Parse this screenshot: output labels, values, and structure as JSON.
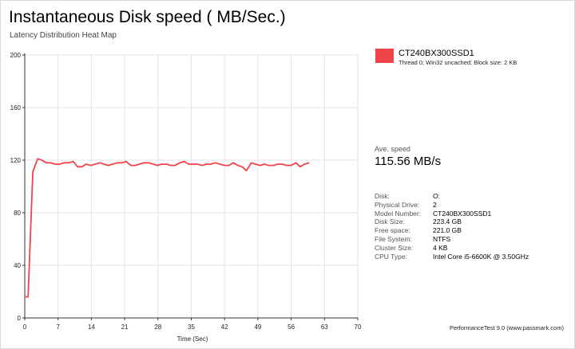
{
  "chart_data": {
    "type": "line",
    "title": "Instantaneous Disk speed ( MB/Sec.)",
    "subtitle": "Latency Distribution Heat Map",
    "xlabel": "Time (Sec)",
    "ylabel": "",
    "xlim": [
      0,
      70
    ],
    "ylim": [
      0,
      200
    ],
    "xticks": [
      0,
      7,
      14,
      21,
      28,
      35,
      42,
      49,
      56,
      63,
      70
    ],
    "yticks": [
      0,
      40,
      80,
      120,
      160,
      200
    ],
    "grid": true,
    "legend_position": "right",
    "series": [
      {
        "name": "CT240BX300SSD1",
        "detail": "Thread 0; Win32 uncached; Block size: 2 KB",
        "color": "#f0444a",
        "x": [
          0,
          0.7,
          1.7,
          2.7,
          3.6,
          4.5,
          5.4,
          6.4,
          7.3,
          8.3,
          9.2,
          10.2,
          11.1,
          12,
          12.9,
          13.9,
          14.8,
          15.8,
          16.6,
          17.6,
          18.5,
          19.4,
          20.4,
          21.3,
          22.3,
          23.2,
          24.1,
          25.1,
          26,
          27,
          27.9,
          28.8,
          29.8,
          30.7,
          31.6,
          32.6,
          33.5,
          34.5,
          35.4,
          36.3,
          37.3,
          38.2,
          39.1,
          40.1,
          41,
          42,
          42.9,
          43.8,
          44.8,
          45.7,
          46.6,
          47.6,
          48.5,
          49.5,
          50.4,
          51.3,
          52.3,
          53.2,
          54.1,
          55.1,
          56,
          57,
          57.9,
          58.8,
          59.8
        ],
        "y": [
          16,
          16,
          111,
          121,
          120,
          118,
          118,
          117,
          117,
          118,
          118,
          119,
          115,
          115,
          117,
          116,
          117,
          118,
          117,
          116,
          117,
          118,
          118,
          119,
          116,
          116,
          117,
          118,
          118,
          117,
          116,
          117,
          117,
          116,
          116,
          118,
          119,
          117,
          117,
          117,
          116,
          117,
          117,
          118,
          117,
          116,
          116,
          118,
          116,
          115,
          112,
          118,
          117,
          116,
          117,
          116,
          116,
          117,
          117,
          116,
          116,
          118,
          115,
          117,
          118
        ]
      }
    ]
  },
  "legend": {
    "name": "CT240BX300SSD1",
    "detail": "Thread 0; Win32 uncached; Block size: 2 KB",
    "color": "#f0444a"
  },
  "average": {
    "label": "Ave. speed",
    "value": "115.56 MB/s"
  },
  "info": [
    {
      "key": "Disk:",
      "value": "O:"
    },
    {
      "key": "Physical Drive:",
      "value": "2"
    },
    {
      "key": "Model Number:",
      "value": "CT240BX300SSD1"
    },
    {
      "key": "Disk Size:",
      "value": "223.4 GB"
    },
    {
      "key": "Free space:",
      "value": "221.0 GB"
    },
    {
      "key": "File System:",
      "value": "NTFS"
    },
    {
      "key": "Cluster Size:",
      "value": "4 KB"
    },
    {
      "key": "CPU Type:",
      "value": "Intel Core i5-6600K @ 3.50GHz"
    }
  ],
  "footer": "PerformanceTest 9.0 (www.passmark.com)"
}
